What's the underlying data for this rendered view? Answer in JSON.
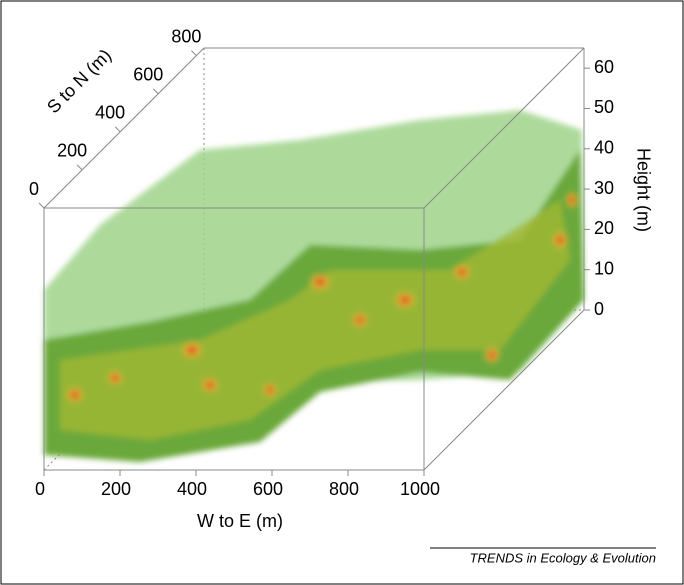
{
  "chart_data": {
    "type": "volume3d",
    "xlabel": "W to E (m)",
    "ylabel": "S to N (m)",
    "zlabel": "Height (m)",
    "xlim": [
      0,
      1000
    ],
    "xticks": [
      0,
      200,
      400,
      600,
      800,
      1000
    ],
    "ylim": [
      0,
      840
    ],
    "yticks": [
      0,
      200,
      400,
      600,
      800
    ],
    "zlim": [
      0,
      65
    ],
    "zticks": [
      0,
      10,
      20,
      30,
      40,
      50,
      60
    ]
  },
  "source": "TRENDS in Ecology & Evolution"
}
